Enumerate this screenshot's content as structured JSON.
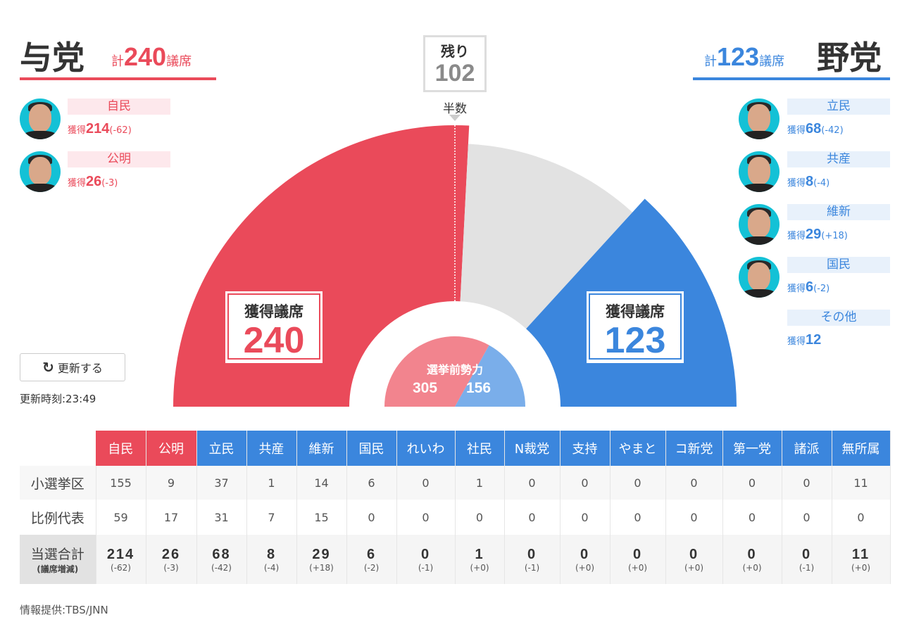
{
  "ruling": {
    "title": "与党",
    "total_prefix": "計",
    "total": "240",
    "total_suffix": "議席",
    "color": "#ea4a5a",
    "parties": [
      {
        "name": "自民",
        "gain_label": "獲得",
        "gain": "214",
        "diff": "(-62)"
      },
      {
        "name": "公明",
        "gain_label": "獲得",
        "gain": "26",
        "diff": "(-3)"
      }
    ]
  },
  "opposition": {
    "title": "野党",
    "total_prefix": "計",
    "total": "123",
    "total_suffix": "議席",
    "color": "#3b86dd",
    "parties": [
      {
        "name": "立民",
        "gain_label": "獲得",
        "gain": "68",
        "diff": "(-42)"
      },
      {
        "name": "共産",
        "gain_label": "獲得",
        "gain": "8",
        "diff": "(-4)"
      },
      {
        "name": "維新",
        "gain_label": "獲得",
        "gain": "29",
        "diff": "(+18)"
      },
      {
        "name": "国民",
        "gain_label": "獲得",
        "gain": "6",
        "diff": "(-2)"
      },
      {
        "name": "その他",
        "gain_label": "獲得",
        "gain": "12",
        "diff": ""
      }
    ]
  },
  "remaining": {
    "label": "残り",
    "value": "102"
  },
  "majority_label": "半数",
  "seat_boxes": {
    "ruling": {
      "label": "獲得議席",
      "value": "240"
    },
    "opposition": {
      "label": "獲得議席",
      "value": "123"
    }
  },
  "pre_election": {
    "label": "選挙前勢力",
    "ruling": "305",
    "opposition": "156"
  },
  "chart_data": {
    "type": "pie",
    "subtype": "half-donut",
    "categories": [
      "与党",
      "残り",
      "野党"
    ],
    "values": [
      240,
      102,
      123
    ],
    "colors": [
      "#ea4a5a",
      "#e2e2e2",
      "#3b86dd"
    ],
    "inner": {
      "categories": [
        "与党",
        "野党"
      ],
      "values": [
        305,
        156
      ],
      "colors": [
        "#f2848e",
        "#7aaeea"
      ]
    }
  },
  "refresh": {
    "label": "更新する",
    "icon": "refresh-icon"
  },
  "updated": "更新時刻:23:49",
  "table": {
    "headers": [
      "自民",
      "公明",
      "立民",
      "共産",
      "維新",
      "国民",
      "れいわ",
      "社民",
      "N裁党",
      "支持",
      "やまと",
      "コ新党",
      "第一党",
      "諸派",
      "無所属"
    ],
    "header_colors": [
      "#ea4a5a",
      "#ea4a5a",
      "#3b86dd",
      "#3b86dd",
      "#3b86dd",
      "#3b86dd",
      "#3b86dd",
      "#3b86dd",
      "#3b86dd",
      "#3b86dd",
      "#3b86dd",
      "#3b86dd",
      "#3b86dd",
      "#3b86dd",
      "#3b86dd"
    ],
    "rows": [
      {
        "label": "小選挙区",
        "values": [
          "155",
          "9",
          "37",
          "1",
          "14",
          "6",
          "0",
          "1",
          "0",
          "0",
          "0",
          "0",
          "0",
          "0",
          "11"
        ]
      },
      {
        "label": "比例代表",
        "values": [
          "59",
          "17",
          "31",
          "7",
          "15",
          "0",
          "0",
          "0",
          "0",
          "0",
          "0",
          "0",
          "0",
          "0",
          "0"
        ]
      }
    ],
    "total_row": {
      "label": "当選合計",
      "sublabel": "(議席増減)",
      "values": [
        "214",
        "26",
        "68",
        "8",
        "29",
        "6",
        "0",
        "1",
        "0",
        "0",
        "0",
        "0",
        "0",
        "0",
        "11"
      ],
      "diffs": [
        "(-62)",
        "(-3)",
        "(-42)",
        "(-4)",
        "(+18)",
        "(-2)",
        "(-1)",
        "(+0)",
        "(-1)",
        "(+0)",
        "(+0)",
        "(+0)",
        "(+0)",
        "(-1)",
        "(+0)"
      ]
    }
  },
  "footer": "情報提供:TBS/JNN"
}
